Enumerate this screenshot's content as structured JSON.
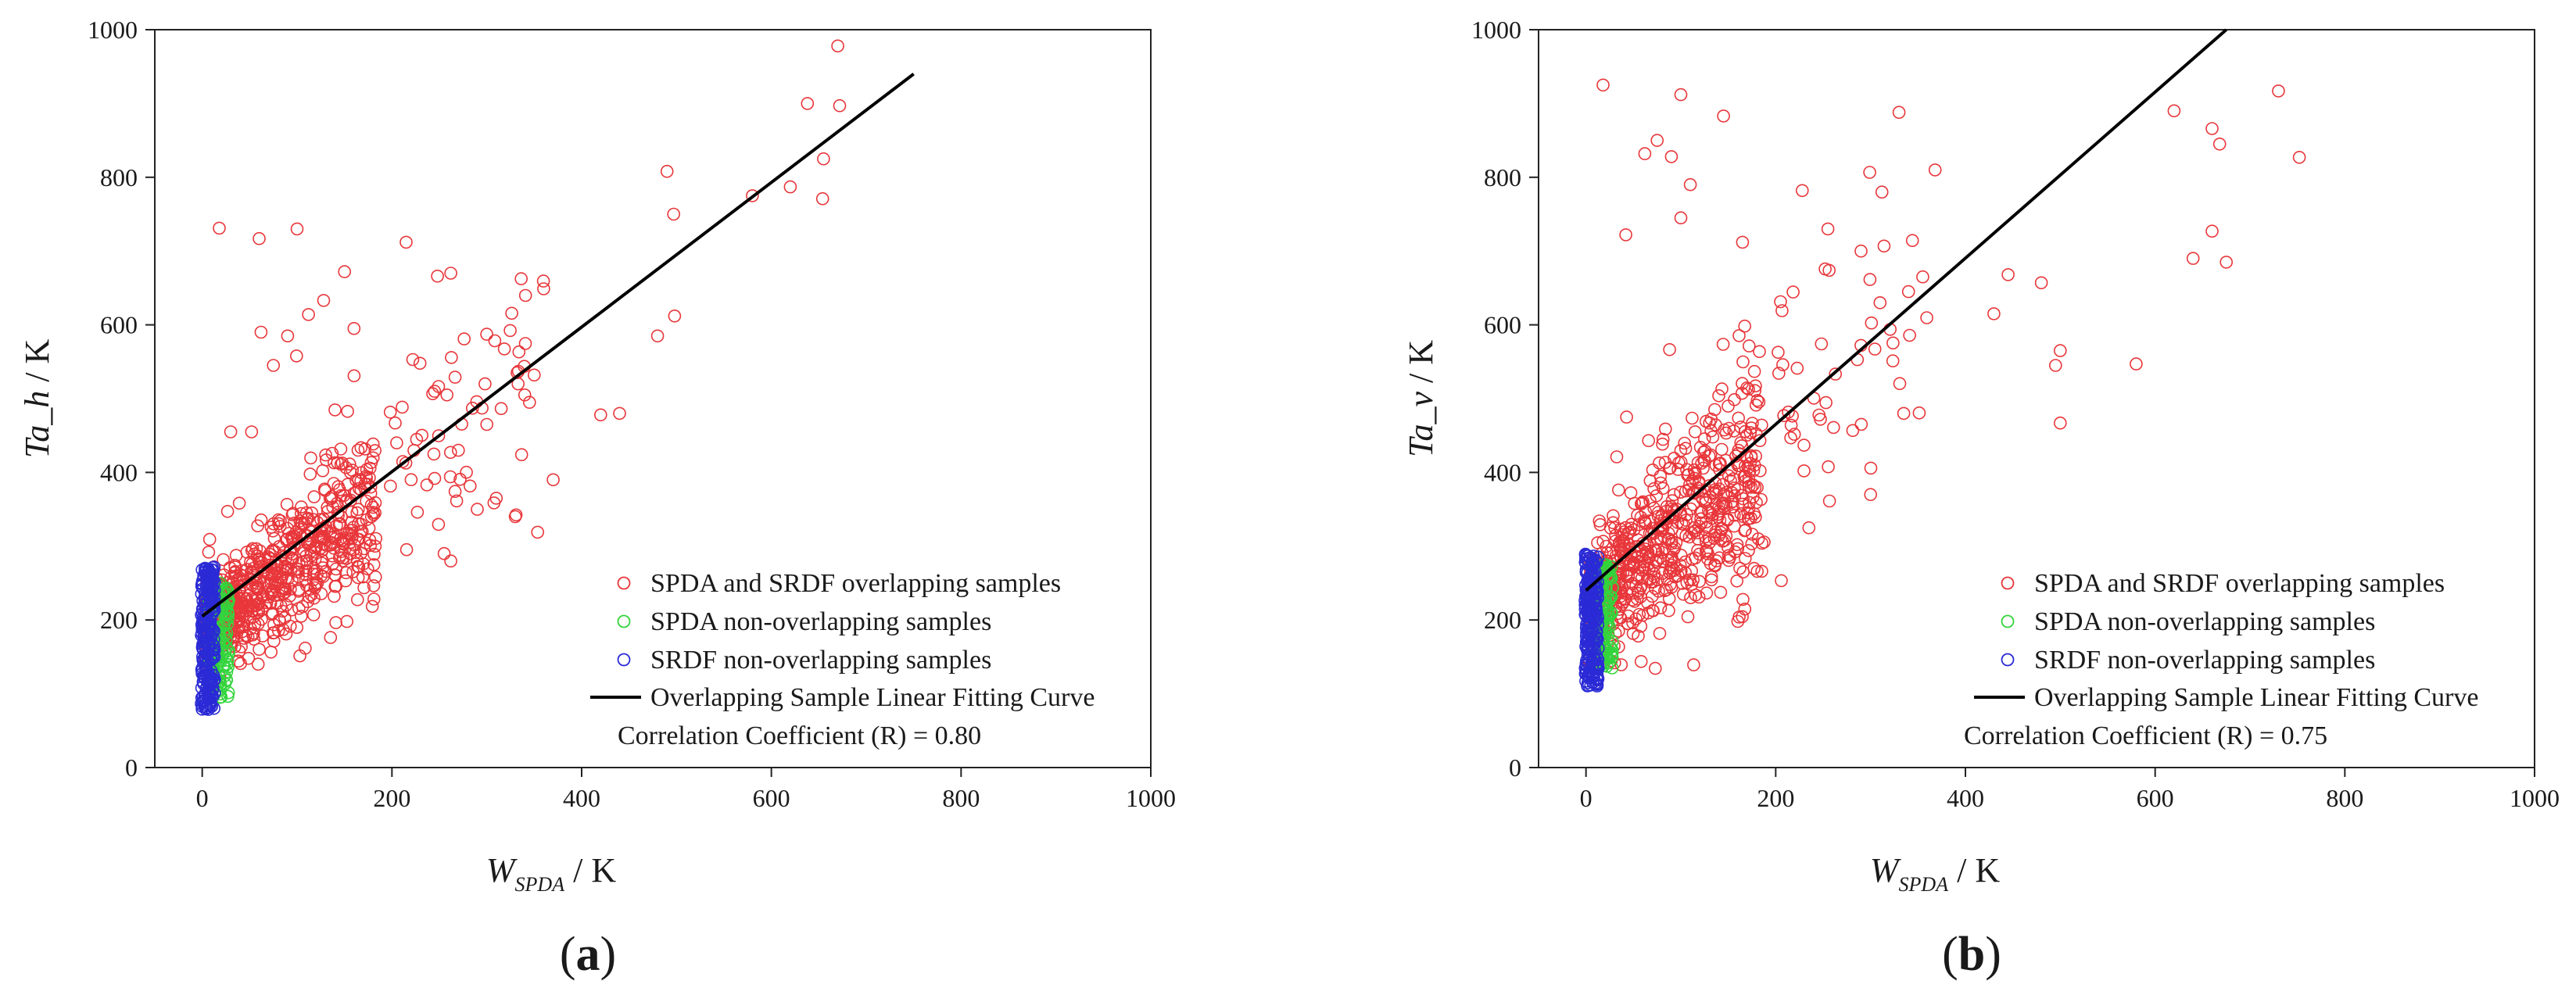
{
  "chart_data": [
    {
      "type": "scatter",
      "panel_label": "(a)",
      "panel_letter": "a",
      "xlabel": {
        "var": "W",
        "sub": "SPDA",
        "unit": " / K"
      },
      "ylabel": {
        "var": "Ta_h",
        "unit": " / K"
      },
      "xlim": [
        -50,
        1000
      ],
      "ylim": [
        0,
        1000
      ],
      "xticks": [
        0,
        200,
        400,
        600,
        800,
        1000
      ],
      "yticks": [
        0,
        200,
        400,
        600,
        800,
        1000
      ],
      "grid": false,
      "legend_position": "lower-right",
      "series": [
        {
          "name": "SPDA and SRDF overlapping samples",
          "color": "#e8363a",
          "marker": "circle",
          "cluster": "overlap"
        },
        {
          "name": "SPDA non-overlapping samples",
          "color": "#33d43c",
          "marker": "circle",
          "cluster": "spda_only"
        },
        {
          "name": "SRDF non-overlapping samples",
          "color": "#2a2ad6",
          "marker": "circle",
          "cluster": "srdf_only"
        },
        {
          "name": "Overlapping Sample Linear Fitting Curve",
          "color": "#000000",
          "marker": "line",
          "fit": {
            "x": [
              0,
              750
            ],
            "y": [
              205,
              940
            ]
          }
        }
      ],
      "correlation_text": "Correlation Coefficient (R) = 0.80",
      "correlation_R": 0.8,
      "cloud_params": {
        "slope": 0.98,
        "intercept": 205,
        "dense_xmax": 180,
        "noise": 55,
        "srdf_ymin": 78,
        "srdf_ymax": 272,
        "spda_ymin": 95,
        "spda_ymax": 250,
        "seed": 11
      },
      "outliers": [
        [
          670,
          978
        ],
        [
          638,
          900
        ],
        [
          672,
          897
        ],
        [
          655,
          825
        ],
        [
          620,
          787
        ],
        [
          654,
          771
        ],
        [
          580,
          775
        ],
        [
          490,
          808
        ],
        [
          497,
          750
        ],
        [
          498,
          612
        ],
        [
          480,
          585
        ],
        [
          440,
          480
        ],
        [
          420,
          478
        ],
        [
          350,
          532
        ],
        [
          340,
          505
        ],
        [
          345,
          495
        ],
        [
          333,
          520
        ],
        [
          370,
          390
        ],
        [
          18,
          731
        ],
        [
          60,
          717
        ],
        [
          100,
          730
        ],
        [
          150,
          672
        ],
        [
          215,
          712
        ],
        [
          248,
          666
        ],
        [
          262,
          670
        ],
        [
          112,
          614
        ],
        [
          128,
          633
        ],
        [
          160,
          595
        ],
        [
          90,
          585
        ],
        [
          62,
          590
        ],
        [
          75,
          545
        ],
        [
          222,
          553
        ],
        [
          245,
          510
        ],
        [
          258,
          505
        ],
        [
          300,
          465
        ],
        [
          290,
          350
        ],
        [
          310,
          365
        ],
        [
          330,
          340
        ],
        [
          255,
          290
        ],
        [
          262,
          280
        ],
        [
          270,
          430
        ],
        [
          30,
          455
        ],
        [
          52,
          455
        ],
        [
          205,
          440
        ]
      ]
    },
    {
      "type": "scatter",
      "panel_label": "(b)",
      "panel_letter": "b",
      "xlabel": {
        "var": "W",
        "sub": "SPDA",
        "unit": " / K"
      },
      "ylabel": {
        "var": "Ta_v",
        "unit": " / K"
      },
      "xlim": [
        -50,
        1000
      ],
      "ylim": [
        0,
        1000
      ],
      "xticks": [
        0,
        200,
        400,
        600,
        800,
        1000
      ],
      "yticks": [
        0,
        200,
        400,
        600,
        800,
        1000
      ],
      "grid": false,
      "legend_position": "lower-right",
      "series": [
        {
          "name": "SPDA and SRDF overlapping samples",
          "color": "#e8363a",
          "marker": "circle",
          "cluster": "overlap"
        },
        {
          "name": "SPDA non-overlapping samples",
          "color": "#33d43c",
          "marker": "circle",
          "cluster": "spda_only"
        },
        {
          "name": "SRDF non-overlapping samples",
          "color": "#2a2ad6",
          "marker": "circle",
          "cluster": "srdf_only"
        },
        {
          "name": "Overlapping Sample Linear Fitting Curve",
          "color": "#000000",
          "marker": "line",
          "fit": {
            "x": [
              0,
              675
            ],
            "y": [
              240,
              1000
            ]
          }
        }
      ],
      "correlation_text": "Correlation Coefficient (R) = 0.75",
      "correlation_R": 0.75,
      "cloud_params": {
        "slope": 1.15,
        "intercept": 235,
        "dense_xmax": 185,
        "noise": 70,
        "srdf_ymin": 110,
        "srdf_ymax": 290,
        "spda_ymin": 135,
        "spda_ymax": 275,
        "seed": 29
      },
      "outliers": [
        [
          18,
          925
        ],
        [
          100,
          912
        ],
        [
          145,
          883
        ],
        [
          330,
          888
        ],
        [
          620,
          890
        ],
        [
          730,
          917
        ],
        [
          75,
          850
        ],
        [
          62,
          832
        ],
        [
          90,
          828
        ],
        [
          110,
          790
        ],
        [
          228,
          782
        ],
        [
          312,
          780
        ],
        [
          368,
          810
        ],
        [
          660,
          866
        ],
        [
          668,
          845
        ],
        [
          752,
          827
        ],
        [
          660,
          727
        ],
        [
          640,
          690
        ],
        [
          675,
          685
        ],
        [
          430,
          615
        ],
        [
          480,
          657
        ],
        [
          500,
          565
        ],
        [
          495,
          545
        ],
        [
          580,
          547
        ],
        [
          500,
          467
        ],
        [
          300,
          370
        ],
        [
          235,
          325
        ],
        [
          445,
          668
        ],
        [
          340,
          645
        ],
        [
          355,
          665
        ],
        [
          42,
          722
        ],
        [
          100,
          745
        ],
        [
          165,
          712
        ],
        [
          255,
          730
        ],
        [
          290,
          700
        ],
        [
          310,
          630
        ],
        [
          335,
          480
        ]
      ]
    }
  ]
}
